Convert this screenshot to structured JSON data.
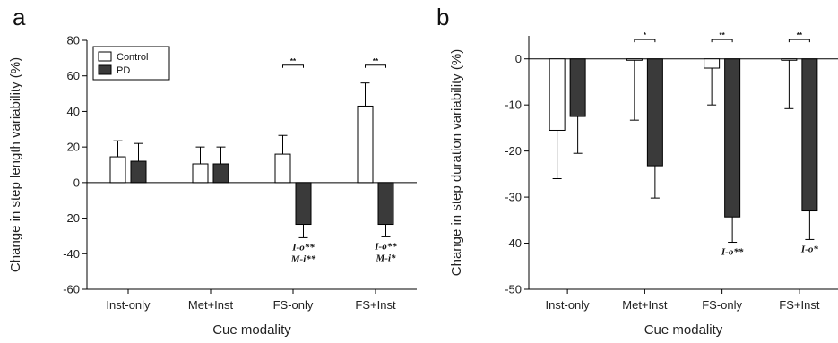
{
  "chart_data": [
    {
      "panel_label": "a",
      "type": "bar",
      "categories": [
        "Inst-only",
        "Met+Inst",
        "FS-only",
        "FS+Inst"
      ],
      "series": [
        {
          "name": "Control",
          "color": "#ffffff",
          "values": [
            14.5,
            10.5,
            16,
            43
          ],
          "errors": [
            9,
            9.5,
            10.5,
            13
          ]
        },
        {
          "name": "PD",
          "color": "#3a3a3a",
          "values": [
            12,
            10.5,
            -23.5,
            -23.5
          ],
          "errors": [
            10,
            9.5,
            7.5,
            7
          ]
        }
      ],
      "xlabel": "Cue modality",
      "ylabel": "Change in step length variability (%)",
      "ylim": [
        -60,
        80
      ],
      "yticks": [
        -60,
        -40,
        -20,
        0,
        20,
        40,
        60,
        80
      ],
      "legend_position": "top-left",
      "significance": [
        {
          "category_index": 2,
          "y": 66,
          "label": "**"
        },
        {
          "category_index": 3,
          "y": 66,
          "label": "**"
        }
      ],
      "annotations": [
        {
          "category_index": 2,
          "lines": [
            "I-o**",
            "M-i**"
          ]
        },
        {
          "category_index": 3,
          "lines": [
            "I-o**",
            "M-i*"
          ]
        }
      ]
    },
    {
      "panel_label": "b",
      "type": "bar",
      "categories": [
        "Inst-only",
        "Met+Inst",
        "FS-only",
        "FS+Inst"
      ],
      "series": [
        {
          "name": "Control",
          "color": "#ffffff",
          "values": [
            -15.5,
            -0.3,
            -2,
            -0.3
          ],
          "errors": [
            10.5,
            13,
            8,
            10.5
          ]
        },
        {
          "name": "PD",
          "color": "#3a3a3a",
          "values": [
            -12.5,
            -23.2,
            -34.3,
            -33
          ],
          "errors": [
            8,
            7,
            5.5,
            6.2
          ]
        }
      ],
      "xlabel": "Cue modality",
      "ylabel": "Change in step duration variability (%)",
      "ylim": [
        -50,
        5
      ],
      "yticks": [
        -50,
        -40,
        -30,
        -20,
        -10,
        0
      ],
      "significance": [
        {
          "category_index": 1,
          "y": 4.2,
          "label": "*"
        },
        {
          "category_index": 2,
          "y": 4.2,
          "label": "**"
        },
        {
          "category_index": 3,
          "y": 4.2,
          "label": "**"
        }
      ],
      "annotations": [
        {
          "category_index": 2,
          "lines": [
            "I-o**"
          ]
        },
        {
          "category_index": 3,
          "lines": [
            "I-o*"
          ]
        }
      ]
    }
  ]
}
